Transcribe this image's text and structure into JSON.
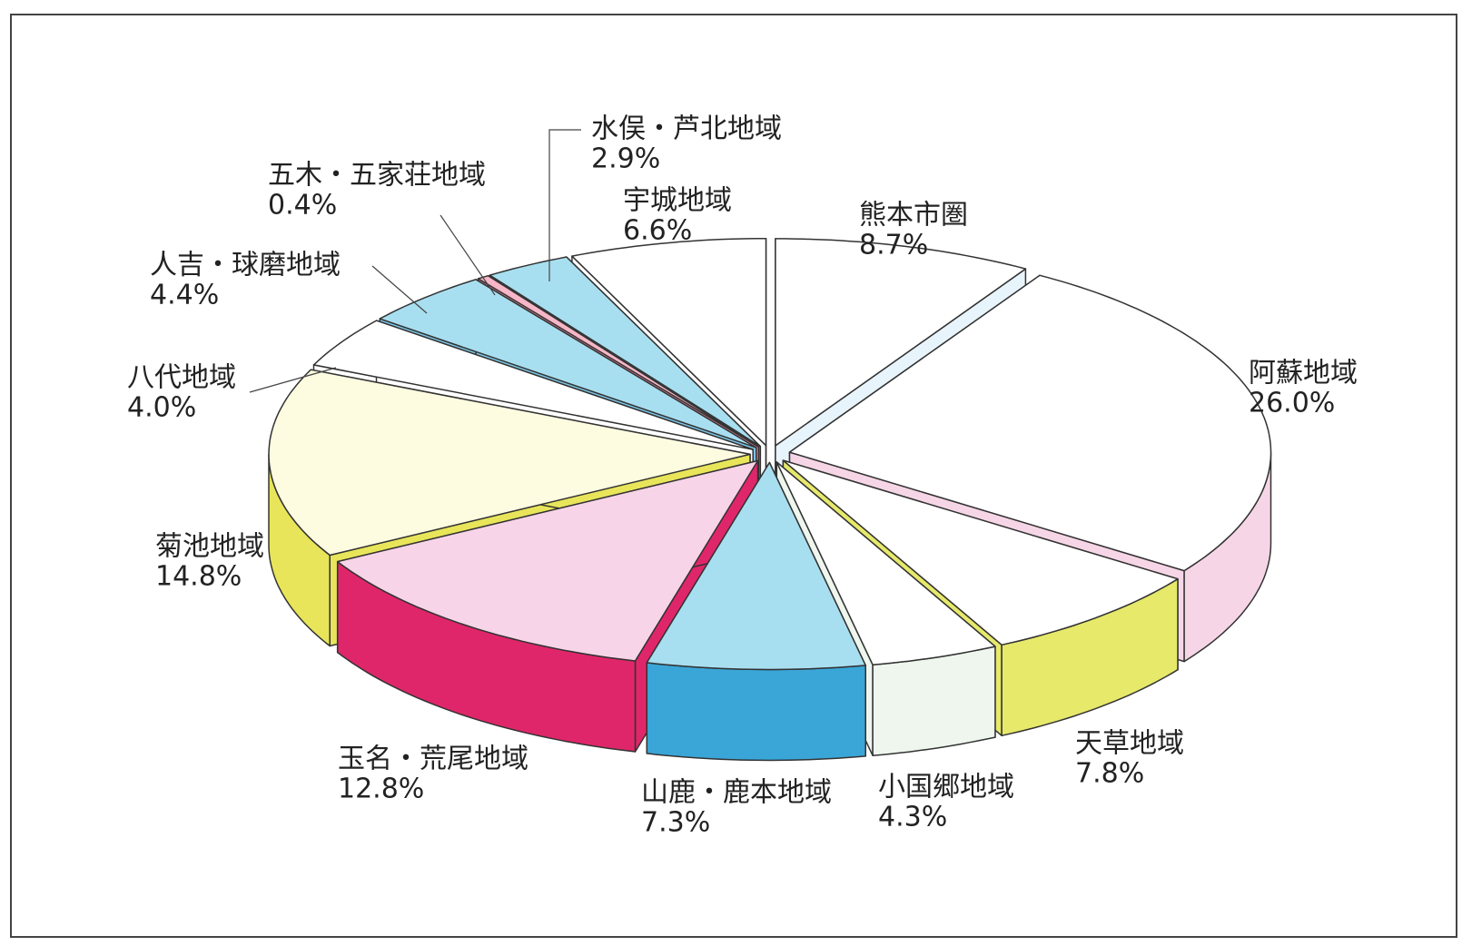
{
  "chart_data": {
    "type": "pie3d",
    "categories": [
      "熊本市圏",
      "阿蘇地域",
      "天草地域",
      "小国郷地域",
      "山鹿・鹿本地域",
      "玉名・荒尾地域",
      "菊池地域",
      "八代地域",
      "人吉・球磨地域",
      "五木・五家荘地域",
      "水俣・芦北地域",
      "宇城地域"
    ],
    "values": [
      8.7,
      26.0,
      7.8,
      4.3,
      7.3,
      12.8,
      14.8,
      4.0,
      4.4,
      0.4,
      2.9,
      6.6
    ],
    "value_labels": [
      "8.7%",
      "26.0%",
      "7.8%",
      "4.3%",
      "7.3%",
      "12.8%",
      "14.8%",
      "4.0%",
      "4.4%",
      "0.4%",
      "2.9%",
      "6.6%"
    ],
    "colors": [
      "#ffffff",
      "#ffffff",
      "#ffffff",
      "#ffffff",
      "#a8dff0",
      "#f8d4e8",
      "#fdfbe0",
      "#ffffff",
      "#a8dff0",
      "#f7b6c8",
      "#a8dff0",
      "#ffffff"
    ],
    "side_colors": [
      "#e8f4fb",
      "#f6d6e6",
      "#e6e96a",
      "#eef6ee",
      "#3aa6d8",
      "#e0266a",
      "#e8e55a",
      "#ffffff",
      "#7cc6e6",
      "#f08aa5",
      "#7cc6e6",
      "#ffffff"
    ]
  }
}
